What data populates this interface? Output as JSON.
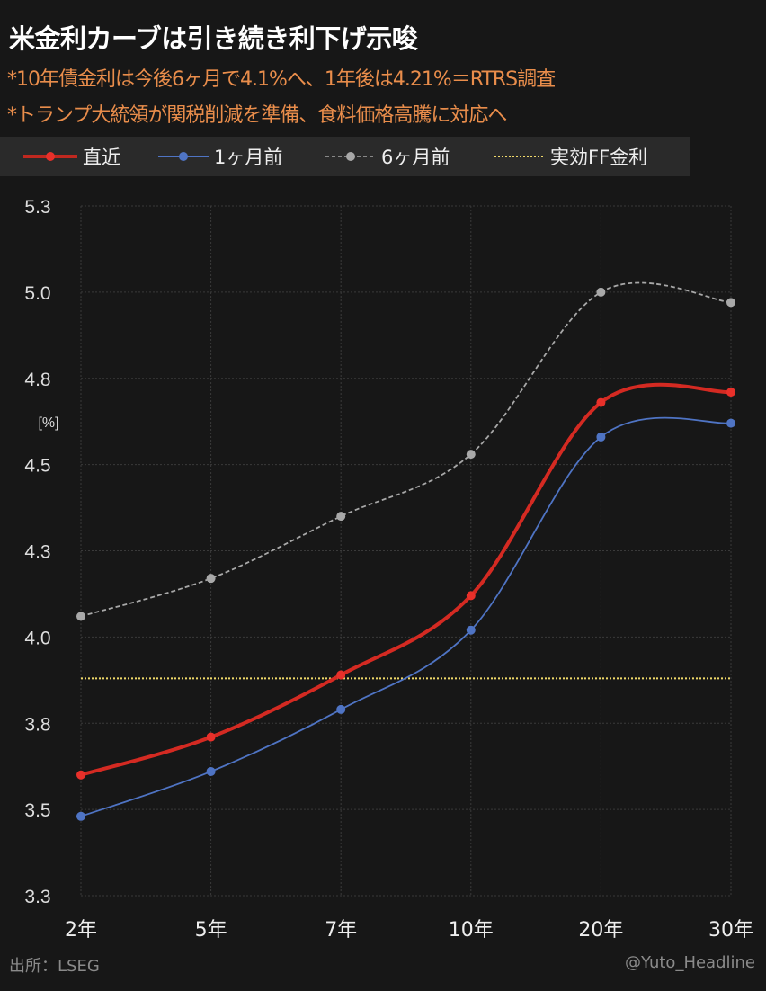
{
  "header": {
    "title": "米金利カーブは引き続き利下げ示唆",
    "subtitle1": "*10年債金利は今後6ヶ月で4.1%へ、1年後は4.21%＝RTRS調査",
    "subtitle2": "*トランプ大統領が関税削減を準備、食料価格高騰に対応へ"
  },
  "footer": {
    "source": "出所：LSEG",
    "credit": "@Yuto_Headline"
  },
  "chart_data": {
    "type": "line",
    "title": "米金利カーブは引き続き利下げ示唆",
    "ylabel": "[%]",
    "categories": [
      "2年",
      "5年",
      "7年",
      "10年",
      "20年",
      "30年"
    ],
    "ylim": [
      3.25,
      5.25
    ],
    "yticks": [
      3.25,
      3.5,
      3.75,
      4.0,
      4.25,
      4.5,
      4.75,
      5.0,
      5.25
    ],
    "ytick_labels": [
      "3.3",
      "3.5",
      "3.8",
      "4.0",
      "4.3",
      "4.5",
      "4.8",
      "5.0",
      "5.3"
    ],
    "grid": true,
    "legend_position": "top",
    "series": [
      {
        "name": "直近",
        "color": "#d42a22",
        "style": "solid",
        "values": [
          3.6,
          3.71,
          3.89,
          4.12,
          4.68,
          4.71
        ]
      },
      {
        "name": "1ヶ月前",
        "color": "#4f74c4",
        "style": "solid",
        "values": [
          3.48,
          3.61,
          3.79,
          4.02,
          4.58,
          4.62
        ]
      },
      {
        "name": "6ヶ月前",
        "color": "#a8a8a8",
        "style": "dashed",
        "values": [
          4.06,
          4.17,
          4.35,
          4.53,
          5.0,
          4.97
        ]
      }
    ],
    "reference_line": {
      "name": "実効FF金利",
      "color": "#f0d96a",
      "style": "dotted",
      "value": 3.88
    }
  }
}
